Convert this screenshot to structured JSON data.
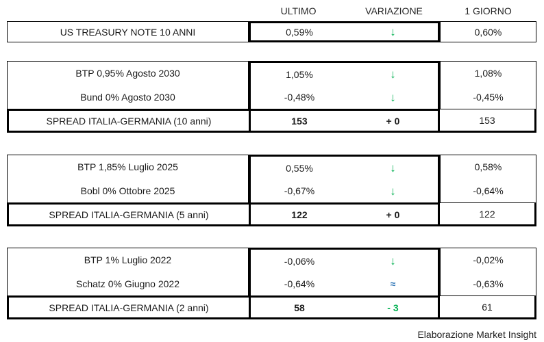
{
  "header": {
    "ultimo": "ULTIMO",
    "variazione": "VARIAZIONE",
    "giorno": "1 GIORNO"
  },
  "colors": {
    "green": "#00B050",
    "blue": "#2E75B6",
    "black": "#1a1a1a",
    "border": "#000000"
  },
  "sections": [
    {
      "rows": [
        {
          "label": "US TREASURY NOTE 10 ANNI",
          "ultimo": "0,59%",
          "variazione": "↓",
          "variazione_color": "#00B050",
          "giorno": "0,60%"
        }
      ]
    },
    {
      "rows": [
        {
          "label": "BTP 0,95% Agosto 2030",
          "ultimo": "1,05%",
          "variazione": "↓",
          "variazione_color": "#00B050",
          "giorno": "1,08%"
        },
        {
          "label": "Bund 0% Agosto 2030",
          "ultimo": "-0,48%",
          "variazione": "↓",
          "variazione_color": "#00B050",
          "giorno": "-0,45%"
        }
      ],
      "spread": {
        "label": "SPREAD ITALIA-GERMANIA (10 anni)",
        "ultimo": "153",
        "variazione": "+ 0",
        "variazione_color": "#1a1a1a",
        "giorno": "153"
      }
    },
    {
      "rows": [
        {
          "label": "BTP 1,85% Luglio 2025",
          "ultimo": "0,55%",
          "variazione": "↓",
          "variazione_color": "#00B050",
          "giorno": "0,58%"
        },
        {
          "label": "Bobl 0% Ottobre 2025",
          "ultimo": "-0,67%",
          "variazione": "↓",
          "variazione_color": "#00B050",
          "giorno": "-0,64%"
        }
      ],
      "spread": {
        "label": "SPREAD ITALIA-GERMANIA (5 anni)",
        "ultimo": "122",
        "variazione": "+ 0",
        "variazione_color": "#1a1a1a",
        "giorno": "122"
      }
    },
    {
      "rows": [
        {
          "label": "BTP 1% Luglio 2022",
          "ultimo": "-0,06%",
          "variazione": "↓",
          "variazione_color": "#00B050",
          "giorno": "-0,02%"
        },
        {
          "label": "Schatz 0% Giugno 2022",
          "ultimo": "-0,64%",
          "variazione": "≈",
          "variazione_color": "#2E75B6",
          "giorno": "-0,63%"
        }
      ],
      "spread": {
        "label": "SPREAD ITALIA-GERMANIA (2 anni)",
        "ultimo": "58",
        "variazione": "- 3",
        "variazione_color": "#00B050",
        "giorno": "61"
      }
    }
  ],
  "footer": {
    "credit": "Elaborazione Market Insight"
  },
  "chart_data": {
    "type": "table",
    "columns": [
      "",
      "ULTIMO",
      "VARIAZIONE",
      "1 GIORNO"
    ],
    "rows": [
      [
        "US TREASURY NOTE 10 ANNI",
        "0,59%",
        "↓",
        "0,60%"
      ],
      [
        "BTP 0,95% Agosto 2030",
        "1,05%",
        "↓",
        "1,08%"
      ],
      [
        "Bund 0% Agosto 2030",
        "-0,48%",
        "↓",
        "-0,45%"
      ],
      [
        "SPREAD ITALIA-GERMANIA (10 anni)",
        "153",
        "+ 0",
        "153"
      ],
      [
        "BTP 1,85% Luglio 2025",
        "0,55%",
        "↓",
        "0,58%"
      ],
      [
        "Bobl 0% Ottobre 2025",
        "-0,67%",
        "↓",
        "-0,64%"
      ],
      [
        "SPREAD ITALIA-GERMANIA (5 anni)",
        "122",
        "+ 0",
        "122"
      ],
      [
        "BTP 1% Luglio 2022",
        "-0,06%",
        "↓",
        "-0,02%"
      ],
      [
        "Schatz 0% Giugno 2022",
        "-0,64%",
        "≈",
        "-0,63%"
      ],
      [
        "SPREAD ITALIA-GERMANIA (2 anni)",
        "58",
        "- 3",
        "61"
      ]
    ],
    "title": "",
    "source_note": "Elaborazione Market Insight"
  }
}
